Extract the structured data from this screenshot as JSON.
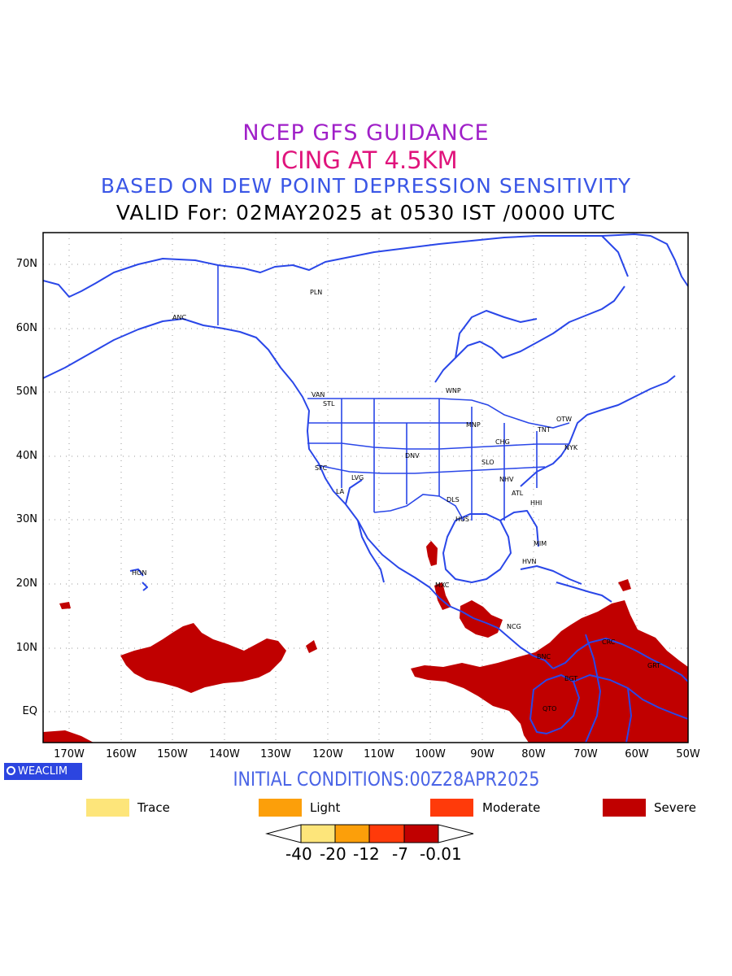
{
  "titles": {
    "line1": "NCEP GFS GUIDANCE",
    "line2": "ICING AT 4.5KM",
    "line3": "BASED ON DEW POINT DEPRESSION SENSITIVITY",
    "line4": "VALID For: 02MAY2025 at 0530 IST /0000 UTC"
  },
  "initial_conditions": "INITIAL CONDITIONS:00Z28APR2025",
  "logo": "WEACLIM",
  "lat_labels": [
    "70N",
    "60N",
    "50N",
    "40N",
    "30N",
    "20N",
    "10N",
    "EQ"
  ],
  "lon_labels": [
    "170W",
    "160W",
    "150W",
    "140W",
    "130W",
    "120W",
    "110W",
    "100W",
    "90W",
    "80W",
    "70W",
    "60W",
    "50W"
  ],
  "legend": [
    {
      "label": "Trace",
      "color": "#fde57a"
    },
    {
      "label": "Light",
      "color": "#fc9f0a"
    },
    {
      "label": "Moderate",
      "color": "#ff3a0a"
    },
    {
      "label": "Severe",
      "color": "#c00000"
    }
  ],
  "colorbar_labels": [
    "-40",
    "-20",
    "-12",
    "-7",
    "-0.01"
  ],
  "colors": {
    "coastline": "#2a47e8",
    "severe": "#c00000",
    "land_outline": "#2a47e8"
  },
  "stations": [
    "PLN",
    "ANC",
    "VAN",
    "STL",
    "WNP",
    "MNP",
    "OTW",
    "TNT",
    "CHG",
    "NYK",
    "DNV",
    "SFC",
    "SLO",
    "LVG",
    "NHV",
    "LA",
    "ATL",
    "DLS",
    "HHI",
    "HUS",
    "MIM",
    "HVN",
    "HON",
    "MXC",
    "NCG",
    "CRC",
    "BNC",
    "BGT",
    "GRT",
    "QTO"
  ]
}
